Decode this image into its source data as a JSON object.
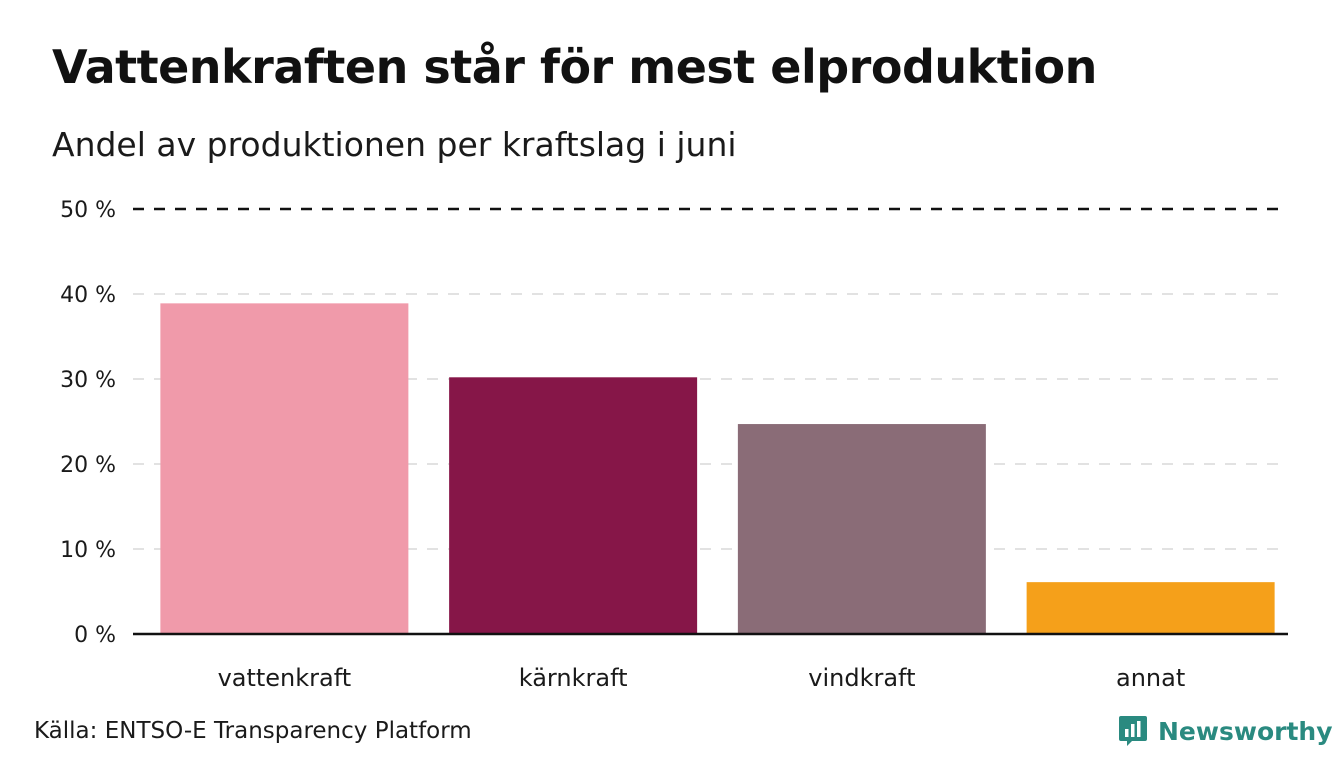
{
  "header": {
    "title": "Vattenkraften står för mest elproduktion",
    "subtitle": "Andel av produktionen per kraftslag i juni"
  },
  "footer": {
    "source": "Källa: ENTSO-E Transparency Platform",
    "brand": "Newsworthy",
    "brand_icon": "newsworthy-logo-icon",
    "brand_color": "#2a8a80"
  },
  "chart_data": {
    "type": "bar",
    "categories": [
      "vattenkraft",
      "kärnkraft",
      "vindkraft",
      "annat"
    ],
    "values": [
      38.9,
      30.2,
      24.7,
      6.1
    ],
    "colors": [
      "#f09aaa",
      "#861648",
      "#8a6c77",
      "#f5a01a"
    ],
    "ylim": [
      0,
      50
    ],
    "yticks": [
      0,
      10,
      20,
      30,
      40,
      50
    ],
    "ytick_labels": [
      "0 %",
      "10 %",
      "20 %",
      "30 %",
      "40 %",
      "50 %"
    ],
    "grid": true
  }
}
